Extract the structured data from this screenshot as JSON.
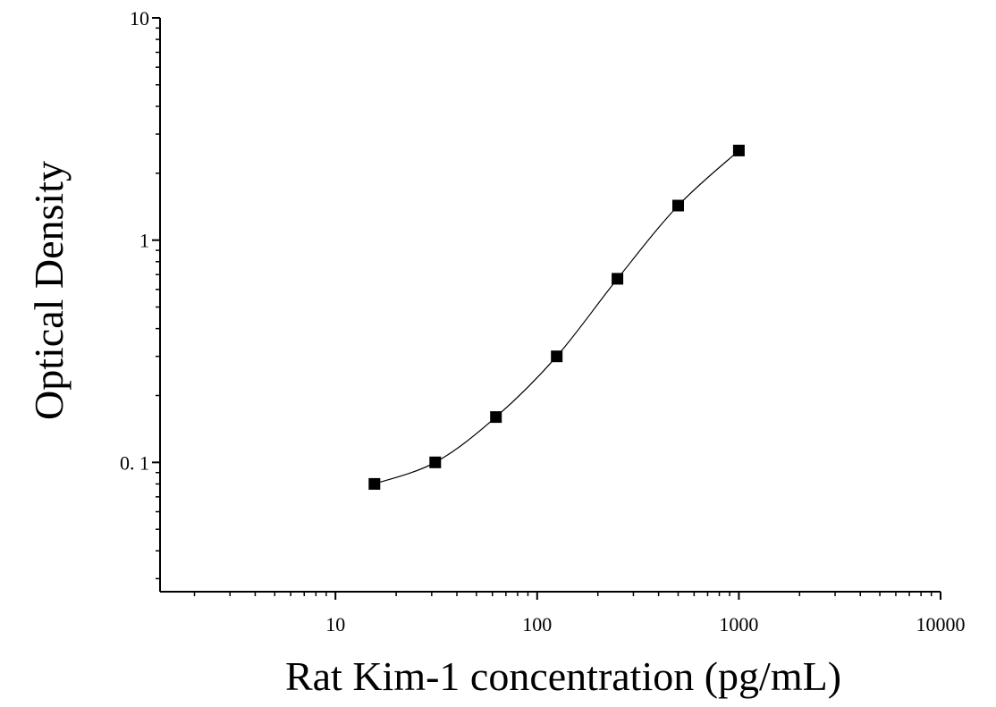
{
  "chart_data": {
    "type": "scatter",
    "xlabel": "Rat Kim-1 concentration (pg/mL)",
    "ylabel": "Optical Density",
    "x_scale": "log",
    "y_scale": "log",
    "xlim": [
      1.35,
      10000
    ],
    "ylim": [
      0.0262,
      10
    ],
    "x_ticks": [
      {
        "value": 10,
        "label": "10"
      },
      {
        "value": 100,
        "label": "100"
      },
      {
        "value": 1000,
        "label": "1000"
      },
      {
        "value": 10000,
        "label": "10000"
      }
    ],
    "y_ticks": [
      {
        "value": 0.1,
        "label": "0. 1"
      },
      {
        "value": 1,
        "label": "1"
      },
      {
        "value": 10,
        "label": "10"
      }
    ],
    "grid": false,
    "legend": "none",
    "marker_color": "#000000",
    "line_color": "#000000",
    "points": [
      {
        "x": 15.6,
        "y": 0.08
      },
      {
        "x": 31.25,
        "y": 0.1
      },
      {
        "x": 62.5,
        "y": 0.16
      },
      {
        "x": 125,
        "y": 0.3
      },
      {
        "x": 250,
        "y": 0.67
      },
      {
        "x": 500,
        "y": 1.43
      },
      {
        "x": 1000,
        "y": 2.53
      }
    ]
  }
}
